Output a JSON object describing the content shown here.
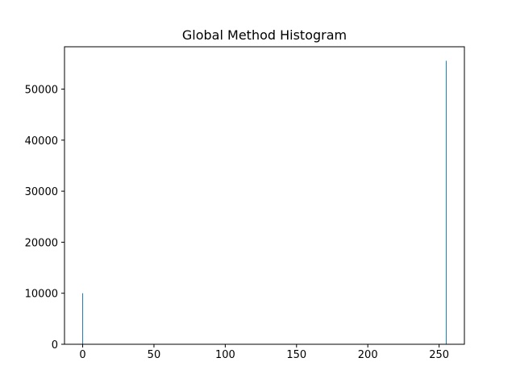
{
  "chart_data": {
    "type": "bar",
    "title": "Global Method Histogram",
    "xlabel": "",
    "ylabel": "",
    "xlim": [
      -12.75,
      267.75
    ],
    "ylim": [
      0,
      58300
    ],
    "x_ticks": [
      0,
      50,
      100,
      150,
      200,
      250
    ],
    "y_ticks": [
      0,
      10000,
      20000,
      30000,
      40000,
      50000
    ],
    "bars": [
      {
        "x": 0,
        "value": 10000
      },
      {
        "x": 255,
        "value": 55550
      }
    ],
    "bar_color": "#1f77b4",
    "grid": false,
    "legend": "none"
  }
}
